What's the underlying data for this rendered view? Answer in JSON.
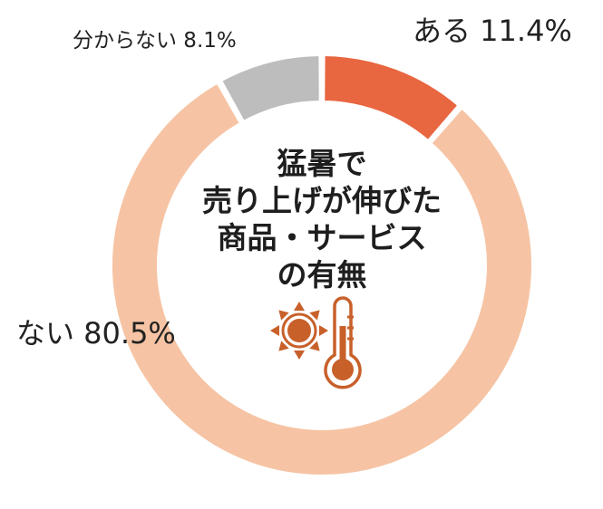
{
  "chart_data": {
    "type": "pie",
    "title_lines": [
      "猛暑で",
      "売り上げが伸びた",
      "商品・サービス",
      "の有無"
    ],
    "slices": [
      {
        "label": "ある",
        "value": 11.4,
        "display": "11.4%",
        "color": "#e86640"
      },
      {
        "label": "ない",
        "value": 80.5,
        "display": "80.5%",
        "color": "#f6c4a4"
      },
      {
        "label": "分からない",
        "value": 8.1,
        "display": "8.1%",
        "color": "#bdbdbd"
      }
    ],
    "donut": true,
    "icon_color": "#c8602a"
  },
  "labels": {
    "aru": "ある 11.4%",
    "nai": "ない 80.5%",
    "wakaranai": "分からない 8.1%"
  }
}
